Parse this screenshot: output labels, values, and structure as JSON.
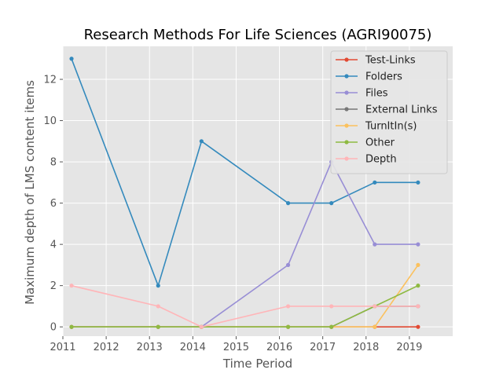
{
  "chart_data": {
    "type": "line",
    "title": "Research Methods For Life Sciences (AGRI90075)",
    "xlabel": "Time Period",
    "ylabel": "Maximum depth of LMS content items",
    "xlim": [
      2011,
      2020
    ],
    "ylim": [
      -0.45,
      13.6
    ],
    "xticks": [
      2011,
      2012,
      2013,
      2014,
      2015,
      2016,
      2017,
      2018,
      2019
    ],
    "yticks": [
      0,
      2,
      4,
      6,
      8,
      10,
      12
    ],
    "grid": true,
    "legend_position": "top-right",
    "x": [
      2011.2,
      2013.2,
      2014.2,
      2016.2,
      2017.2,
      2018.2,
      2019.2
    ],
    "series": [
      {
        "name": "Test-Links",
        "color": "#E24A33",
        "values": [
          0,
          0,
          0,
          0,
          0,
          0,
          0
        ]
      },
      {
        "name": "Folders",
        "color": "#348ABD",
        "values": [
          13,
          2,
          9,
          6,
          6,
          7,
          7
        ]
      },
      {
        "name": "Files",
        "color": "#988ED5",
        "values": [
          0,
          0,
          0,
          3,
          8,
          4,
          4
        ]
      },
      {
        "name": "External Links",
        "color": "#777777",
        "values": [
          0,
          0,
          0,
          0,
          0,
          1,
          1
        ]
      },
      {
        "name": "TurnItIn(s)",
        "color": "#FBC15E",
        "values": [
          0,
          0,
          0,
          0,
          0,
          0,
          3
        ]
      },
      {
        "name": "Other",
        "color": "#8EBA42",
        "values": [
          0,
          0,
          0,
          0,
          0,
          1,
          2
        ]
      },
      {
        "name": "Depth",
        "color": "#FFB5B8",
        "values": [
          2,
          1,
          0,
          1,
          1,
          1,
          1
        ]
      }
    ]
  }
}
